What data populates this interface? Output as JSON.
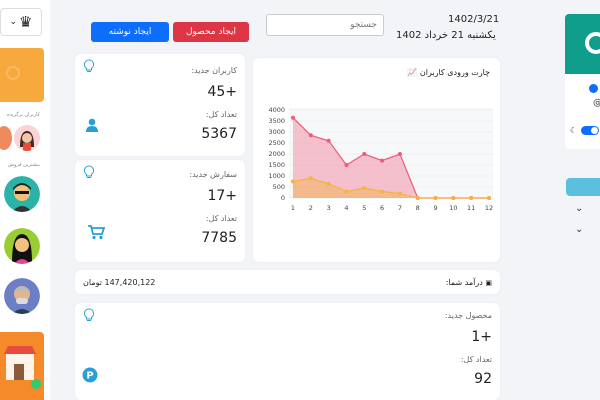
{
  "header": {
    "date_numeric": "1402/3/21",
    "date_text": "یکشنبه 21 خرداد 1402",
    "search_placeholder": "جستجو",
    "btn_create_product": "ایجاد محصول",
    "btn_create_post": "ایجاد نوشته"
  },
  "left_panel": {
    "users_label": "کاربران برگزیده",
    "sellers_label": "بیشترین فروش"
  },
  "users_card": {
    "new_label": "کاربران جدید:",
    "new_value": "45+",
    "total_label": "تعداد کل:",
    "total_value": "5367"
  },
  "orders_card": {
    "new_label": "سفارش جدید:",
    "new_value": "17+",
    "total_label": "تعداد کل:",
    "total_value": "7785"
  },
  "revenue": {
    "label": "درآمد شما:",
    "amount": "147,420,122 تومان"
  },
  "products_card": {
    "new_label": "محصول جدید:",
    "new_value": "1+",
    "total_label": "تعداد کل:",
    "total_value": "92"
  },
  "colors": {
    "red_button": "#dc3545",
    "blue_button": "#0d6efd",
    "series_pink": "#f05a78",
    "series_orange": "#f5b342",
    "icon_blue": "#2a9fd6"
  },
  "chart_data": {
    "type": "area",
    "title": "چارت ورودی کاربران",
    "x": [
      1,
      2,
      3,
      4,
      5,
      6,
      7,
      8,
      9,
      10,
      11,
      12
    ],
    "ylim": [
      0,
      4000
    ],
    "yticks": [
      0,
      500,
      1000,
      1500,
      2000,
      2500,
      3000,
      3500,
      4000
    ],
    "grid": true,
    "series": [
      {
        "values": [
          3650,
          2850,
          2600,
          1500,
          2000,
          1700,
          2000,
          0,
          0,
          0,
          0,
          0
        ],
        "color": "#f05a78"
      },
      {
        "values": [
          750,
          900,
          650,
          300,
          450,
          300,
          200,
          0,
          0,
          0,
          0,
          0
        ],
        "color": "#f5b342"
      }
    ]
  }
}
